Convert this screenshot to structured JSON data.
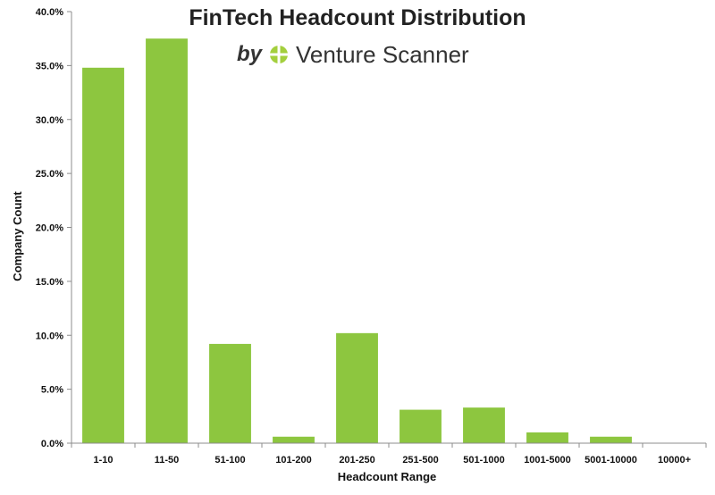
{
  "header": {
    "title": "FinTech Headcount Distribution",
    "by_text": "by",
    "brand_name": "Venture Scanner"
  },
  "colors": {
    "bar": "#8dc63f",
    "axis": "#8c8c8c",
    "logo": "#a3cf3d"
  },
  "icons": {
    "brand_logo": "venture-scanner-logo-icon"
  },
  "chart_data": {
    "type": "bar",
    "title": "FinTech Headcount Distribution",
    "xlabel": "Headcount Range",
    "ylabel": "Company Count",
    "categories": [
      "1-10",
      "11-50",
      "51-100",
      "101-200",
      "201-250",
      "251-500",
      "501-1000",
      "1001-5000",
      "5001-10000",
      "10000+"
    ],
    "values": [
      34.8,
      37.5,
      9.2,
      0.6,
      10.2,
      3.1,
      3.3,
      1.0,
      0.6,
      0.0
    ],
    "ylim": [
      0,
      40
    ],
    "yticks": [
      0,
      5,
      10,
      15,
      20,
      25,
      30,
      35,
      40
    ],
    "ytick_labels": [
      "0.0%",
      "5.0%",
      "10.0%",
      "15.0%",
      "20.0%",
      "25.0%",
      "30.0%",
      "35.0%",
      "40.0%"
    ],
    "grid": false,
    "legend": "none"
  }
}
